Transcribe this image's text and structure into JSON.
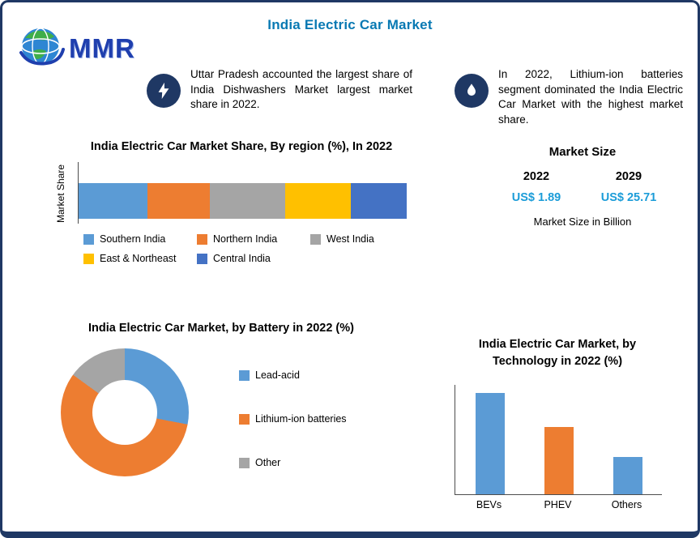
{
  "header": {
    "title": "India Electric Car Market"
  },
  "logo": {
    "text": "MMR"
  },
  "insights": {
    "left": "Uttar Pradesh accounted the largest share of India Dishwashers Market largest market share in 2022.",
    "right": "In 2022, Lithium-ion batteries segment dominated the India Electric Car Market with the highest market share."
  },
  "market_size": {
    "title": "Market Size",
    "year_left": "2022",
    "year_right": "2029",
    "value_left": "US$ 1.89",
    "value_right": "US$ 25.71",
    "note": "Market Size in Billion"
  },
  "colors": {
    "accent_teal": "#1b9cd8",
    "title_blue": "#0879b3",
    "border_navy": "#1f3864"
  },
  "chart_data": [
    {
      "type": "bar",
      "variant": "stacked-horizontal",
      "title": "India Electric Car Market Share, By region (%), In 2022",
      "ylabel": "Market Share",
      "categories": [
        "Southern India",
        "Northern India",
        "West India",
        "East & Northeast",
        "Central India"
      ],
      "values": [
        21,
        19,
        23,
        20,
        17
      ],
      "colors": [
        "#5B9BD5",
        "#ED7D31",
        "#A5A5A5",
        "#FFC000",
        "#4472C4"
      ],
      "legend_position": "bottom",
      "grid": false
    },
    {
      "type": "pie",
      "variant": "donut",
      "title": "India Electric Car Market, by Battery in 2022 (%)",
      "categories": [
        "Lead-acid",
        "Lithium-ion batteries",
        "Other"
      ],
      "values": [
        28,
        57,
        15
      ],
      "colors": [
        "#5B9BD5",
        "#ED7D31",
        "#A5A5A5"
      ],
      "legend_position": "right"
    },
    {
      "type": "bar",
      "title": "India Electric Car Market, by Technology in 2022 (%)",
      "categories": [
        "BEVs",
        "PHEV",
        "Others"
      ],
      "values": [
        60,
        40,
        22
      ],
      "colors": [
        "#5B9BD5",
        "#ED7D31",
        "#5B9BD5"
      ],
      "ylim": [
        0,
        65
      ],
      "grid": false
    }
  ]
}
